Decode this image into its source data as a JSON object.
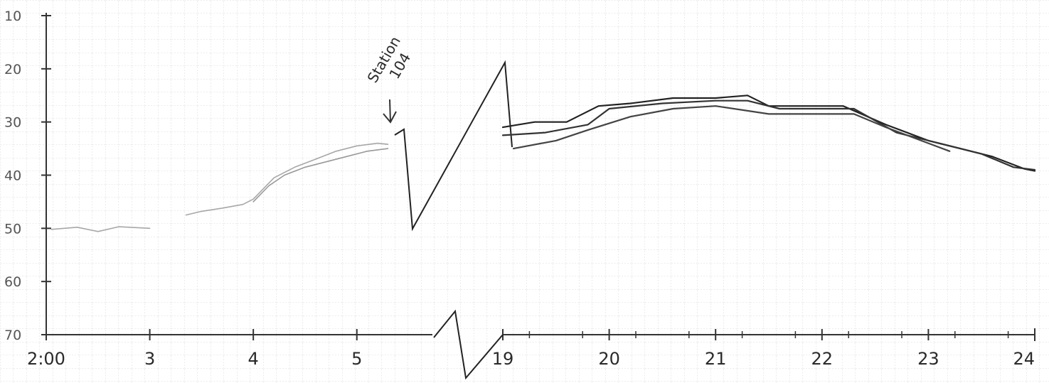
{
  "chart_data": {
    "type": "line",
    "title": "",
    "xlabel": "",
    "ylabel": "",
    "grid": true,
    "legend": "none",
    "y_axis": {
      "inverted": true,
      "range": [
        10,
        70
      ],
      "ticks": [
        10,
        20,
        30,
        40,
        50,
        60,
        70
      ],
      "tick_labels": [
        "10",
        "20",
        "30",
        "40",
        "50",
        "60",
        "70"
      ]
    },
    "x_axis": {
      "broken": true,
      "segments": [
        {
          "range": [
            2,
            5.4
          ]
        },
        {
          "range": [
            19,
            24
          ]
        }
      ],
      "tick_labels": [
        {
          "value": 2,
          "label": "2:00"
        },
        {
          "value": 3,
          "label": "3"
        },
        {
          "value": 4,
          "label": "4"
        },
        {
          "value": 5,
          "label": "5"
        },
        {
          "value": 19,
          "label": "19"
        },
        {
          "value": 20,
          "label": "20"
        },
        {
          "value": 21,
          "label": "21"
        },
        {
          "value": 22,
          "label": "22"
        },
        {
          "value": 23,
          "label": "23"
        },
        {
          "value": 24,
          "label": "24"
        }
      ]
    },
    "annotations": [
      {
        "text": "Station",
        "x": 5.25,
        "y": 19
      },
      {
        "text": "104",
        "x": 5.45,
        "y": 18
      }
    ],
    "series": [
      {
        "style": "faint-pencil",
        "color": "#8a8a8a",
        "x": [
          2.05,
          2.3,
          2.5,
          2.7,
          3.0
        ],
        "y": [
          50.2,
          49.8,
          50.6,
          49.7,
          50.0
        ]
      },
      {
        "style": "faint-pencil",
        "color": "#8a8a8a",
        "x": [
          3.35,
          3.5,
          3.7,
          3.9,
          4.0,
          4.2,
          4.4,
          4.6,
          4.8,
          5.0,
          5.2,
          5.3
        ],
        "y": [
          47.5,
          46.8,
          46.2,
          45.5,
          44.5,
          40.5,
          38.5,
          37.0,
          35.5,
          34.5,
          34.0,
          34.2
        ]
      },
      {
        "style": "faint-pencil",
        "color": "#777777",
        "x": [
          4.0,
          4.15,
          4.3,
          4.5,
          4.7,
          4.9,
          5.1,
          5.3
        ],
        "y": [
          45.0,
          42.0,
          40.0,
          38.5,
          37.5,
          36.5,
          35.5,
          35.0
        ]
      },
      {
        "style": "solid",
        "color": "#222222",
        "x": [
          19.0,
          19.3,
          19.6,
          19.9,
          20.2,
          20.6,
          21.0,
          21.3,
          21.5,
          21.8,
          22.2,
          22.6,
          23.0,
          23.3,
          23.6,
          23.9,
          24.0
        ],
        "y": [
          31.0,
          30.0,
          30.0,
          27.0,
          26.5,
          25.5,
          25.5,
          25.0,
          27.0,
          27.0,
          27.0,
          30.5,
          33.5,
          35.0,
          36.5,
          38.8,
          39.2
        ]
      },
      {
        "style": "solid",
        "color": "#333333",
        "x": [
          19.0,
          19.4,
          19.8,
          20.0,
          20.5,
          21.0,
          21.3,
          21.6,
          22.0,
          22.3,
          22.7,
          23.1,
          23.5,
          23.8,
          24.0
        ],
        "y": [
          32.5,
          32.0,
          30.5,
          27.5,
          26.5,
          26.0,
          26.0,
          27.5,
          27.5,
          27.5,
          32.0,
          34.0,
          36.0,
          38.5,
          39.0
        ]
      },
      {
        "style": "solid",
        "color": "#444444",
        "x": [
          19.1,
          19.5,
          19.8,
          20.2,
          20.6,
          21.0,
          21.5,
          22.0,
          22.3,
          22.6,
          23.0,
          23.2
        ],
        "y": [
          35.0,
          33.5,
          31.5,
          29.0,
          27.5,
          27.0,
          28.5,
          28.5,
          28.5,
          31.0,
          34.0,
          35.5
        ]
      }
    ]
  }
}
